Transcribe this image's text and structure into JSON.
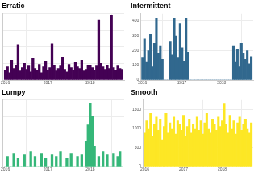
{
  "chart_data": [
    {
      "type": "bar",
      "title": "Erratic",
      "color": "#440154",
      "grid": true,
      "tick_labels": "x",
      "x": [
        2016.0,
        2016.05,
        2016.1,
        2016.15,
        2016.2,
        2016.25,
        2016.3,
        2016.35,
        2016.4,
        2016.45,
        2016.5,
        2016.55,
        2016.6,
        2016.65,
        2016.7,
        2016.75,
        2016.8,
        2016.85,
        2016.9,
        2016.95,
        2017.0,
        2017.05,
        2017.1,
        2017.15,
        2017.2,
        2017.25,
        2017.3,
        2017.35,
        2017.4,
        2017.45,
        2017.5,
        2017.55,
        2017.6,
        2017.65,
        2017.7,
        2017.75,
        2017.8,
        2017.85,
        2017.9,
        2017.95,
        2018.0,
        2018.05,
        2018.1,
        2018.15,
        2018.2,
        2018.25,
        2018.3,
        2018.35,
        2018.4,
        2018.45,
        2018.5,
        2018.55,
        2018.6,
        2018.65,
        2018.7,
        2018.75
      ],
      "values": [
        60,
        80,
        45,
        120,
        70,
        90,
        210,
        55,
        75,
        100,
        65,
        85,
        50,
        130,
        70,
        60,
        95,
        45,
        80,
        110,
        60,
        75,
        220,
        90,
        55,
        70,
        85,
        140,
        65,
        50,
        95,
        75,
        60,
        105,
        80,
        70,
        120,
        55,
        65,
        90,
        90,
        75,
        60,
        85,
        360,
        100,
        80,
        65,
        90,
        70,
        390,
        75,
        60,
        85,
        70,
        65
      ],
      "xlim": [
        2015.95,
        2018.8
      ],
      "xticks": [
        2016,
        2017,
        2018
      ],
      "ylim": [
        0,
        400
      ],
      "yticks": [
        0,
        100,
        200,
        300,
        400
      ]
    },
    {
      "type": "bar",
      "title": "Intermittent",
      "color": "#31688e",
      "grid": true,
      "x": [
        2016.0,
        2016.05,
        2016.1,
        2016.15,
        2016.2,
        2016.25,
        2016.3,
        2016.35,
        2016.4,
        2016.45,
        2016.5,
        2016.55,
        2016.6,
        2016.65,
        2016.7,
        2016.75,
        2016.8,
        2016.85,
        2016.9,
        2016.95,
        2017.0,
        2017.05,
        2017.1,
        2017.15,
        2017.2,
        2017.25,
        2017.3,
        2017.35,
        2017.4,
        2017.45,
        2017.5,
        2017.55,
        2017.6,
        2017.65,
        2017.7,
        2017.75,
        2017.8,
        2017.85,
        2017.9,
        2017.95,
        2018.0,
        2018.05,
        2018.1,
        2018.15,
        2018.2,
        2018.25,
        2018.3,
        2018.35,
        2018.4,
        2018.45,
        2018.5,
        2018.55,
        2018.6,
        2018.65,
        2018.7,
        2018.75
      ],
      "values": [
        150,
        280,
        120,
        200,
        310,
        90,
        250,
        420,
        180,
        230,
        140,
        0,
        0,
        0,
        260,
        170,
        420,
        300,
        150,
        380,
        220,
        130,
        420,
        190,
        0,
        0,
        0,
        0,
        0,
        0,
        0,
        0,
        0,
        0,
        0,
        0,
        0,
        0,
        0,
        0,
        0,
        0,
        0,
        0,
        0,
        0,
        230,
        120,
        210,
        90,
        250,
        180,
        140,
        200,
        110,
        160
      ],
      "xlim": [
        2015.95,
        2018.8
      ],
      "xticks": [
        2016,
        2017,
        2018
      ],
      "ylim": [
        0,
        450
      ],
      "yticks": [
        0,
        100,
        200,
        300,
        400
      ]
    },
    {
      "type": "bar",
      "title": "Lumpy",
      "color": "#35b779",
      "grid": true,
      "tick_labels": "x",
      "x": [
        2016.0,
        2016.05,
        2016.1,
        2016.15,
        2016.2,
        2016.25,
        2016.3,
        2016.35,
        2016.4,
        2016.45,
        2016.5,
        2016.55,
        2016.6,
        2016.65,
        2016.7,
        2016.75,
        2016.8,
        2016.85,
        2016.9,
        2016.95,
        2017.0,
        2017.05,
        2017.1,
        2017.15,
        2017.2,
        2017.25,
        2017.3,
        2017.35,
        2017.4,
        2017.45,
        2017.5,
        2017.55,
        2017.6,
        2017.65,
        2017.7,
        2017.75,
        2017.8,
        2017.85,
        2017.9,
        2017.95,
        2018.0,
        2018.05,
        2018.1,
        2018.15,
        2018.2,
        2018.25,
        2018.3,
        2018.35,
        2018.4,
        2018.45,
        2018.5,
        2018.55,
        2018.6,
        2018.65,
        2018.7,
        2018.75
      ],
      "values": [
        0,
        60,
        0,
        0,
        80,
        0,
        50,
        0,
        0,
        70,
        0,
        0,
        90,
        0,
        60,
        0,
        0,
        80,
        0,
        50,
        0,
        0,
        70,
        0,
        60,
        0,
        90,
        0,
        0,
        50,
        0,
        80,
        0,
        0,
        60,
        0,
        70,
        0,
        150,
        250,
        380,
        300,
        120,
        0,
        60,
        0,
        90,
        0,
        70,
        0,
        0,
        80,
        0,
        60,
        90,
        0
      ],
      "xlim": [
        2015.95,
        2018.8
      ],
      "xticks": [
        2016,
        2017,
        2018
      ],
      "ylim": [
        0,
        400
      ],
      "yticks": [
        0,
        100,
        200,
        300,
        400
      ]
    },
    {
      "type": "bar",
      "title": "Smooth",
      "color": "#fde725",
      "grid": true,
      "x": [
        2016.0,
        2016.05,
        2016.1,
        2016.15,
        2016.2,
        2016.25,
        2016.3,
        2016.35,
        2016.4,
        2016.45,
        2016.5,
        2016.55,
        2016.6,
        2016.65,
        2016.7,
        2016.75,
        2016.8,
        2016.85,
        2016.9,
        2016.95,
        2017.0,
        2017.05,
        2017.1,
        2017.15,
        2017.2,
        2017.25,
        2017.3,
        2017.35,
        2017.4,
        2017.45,
        2017.5,
        2017.55,
        2017.6,
        2017.65,
        2017.7,
        2017.75,
        2017.8,
        2017.85,
        2017.9,
        2017.95,
        2018.0,
        2018.05,
        2018.1,
        2018.15,
        2018.2,
        2018.25,
        2018.3,
        2018.35,
        2018.4,
        2018.45,
        2018.5,
        2018.55,
        2018.6,
        2018.65,
        2018.7,
        2018.75
      ],
      "values": [
        900,
        1200,
        1000,
        1400,
        800,
        1100,
        1300,
        950,
        1250,
        700,
        1050,
        1400,
        900,
        1150,
        1000,
        1300,
        850,
        1200,
        1100,
        950,
        1350,
        800,
        1050,
        1250,
        900,
        1100,
        1000,
        1300,
        950,
        1200,
        850,
        1150,
        1400,
        1000,
        900,
        1250,
        1100,
        950,
        1300,
        1050,
        1200,
        1650,
        1100,
        900,
        1350,
        1000,
        1200,
        850,
        1150,
        1300,
        950,
        1100,
        1250,
        1000,
        900,
        1150
      ],
      "xlim": [
        2015.95,
        2018.8
      ],
      "xticks": [
        2016,
        2017,
        2018
      ],
      "ylim": [
        0,
        1750
      ],
      "yticks": [
        0,
        500,
        1000,
        1500
      ]
    }
  ]
}
